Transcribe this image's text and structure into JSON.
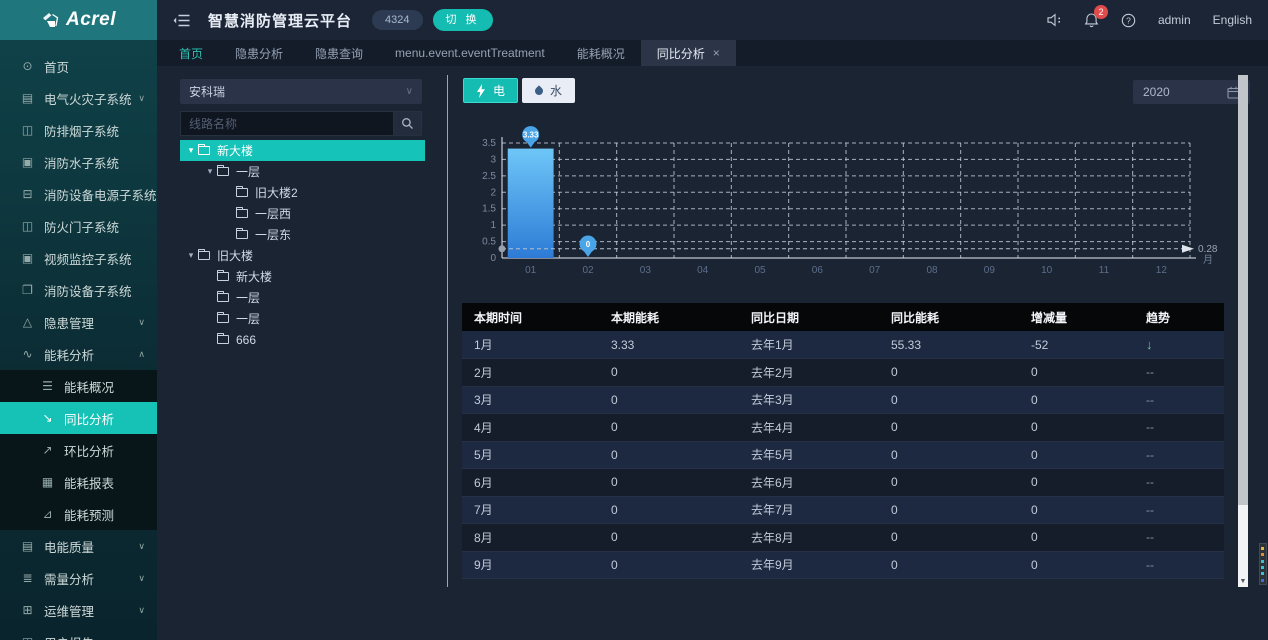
{
  "brand": {
    "logo_text": "Acrel"
  },
  "header": {
    "title": "智慧消防管理云平台",
    "badge": "4324",
    "switch_label": "切 换",
    "bell_count": "2",
    "username": "admin",
    "language": "English"
  },
  "tabs": [
    {
      "label": "首页",
      "accent": true
    },
    {
      "label": "隐患分析"
    },
    {
      "label": "隐患查询"
    },
    {
      "label": "menu.event.eventTreatment"
    },
    {
      "label": "能耗概况"
    },
    {
      "label": "同比分析",
      "active": true,
      "closable": true
    }
  ],
  "sidebar": {
    "items": [
      {
        "label": "首页",
        "icon": "home-icon"
      },
      {
        "label": "电气火灾子系统",
        "icon": "electrical-fire-icon",
        "expand": "down"
      },
      {
        "label": "防排烟子系统",
        "icon": "smoke-control-icon"
      },
      {
        "label": "消防水子系统",
        "icon": "fire-water-icon"
      },
      {
        "label": "消防设备电源子系统",
        "icon": "equipment-power-icon"
      },
      {
        "label": "防火门子系统",
        "icon": "fire-door-icon"
      },
      {
        "label": "视频监控子系统",
        "icon": "video-monitor-icon"
      },
      {
        "label": "消防设备子系统",
        "icon": "fire-equipment-icon"
      },
      {
        "label": "隐患管理",
        "icon": "hazard-management-icon",
        "expand": "down"
      },
      {
        "label": "能耗分析",
        "icon": "energy-analysis-icon",
        "expand": "up",
        "children": [
          {
            "label": "能耗概况",
            "icon": "energy-overview-icon"
          },
          {
            "label": "同比分析",
            "icon": "yoy-analysis-icon",
            "active": true
          },
          {
            "label": "环比分析",
            "icon": "mom-analysis-icon"
          },
          {
            "label": "能耗报表",
            "icon": "energy-report-icon"
          },
          {
            "label": "能耗预测",
            "icon": "energy-forecast-icon"
          }
        ]
      },
      {
        "label": "电能质量",
        "icon": "power-quality-icon",
        "expand": "down"
      },
      {
        "label": "需量分析",
        "icon": "demand-analysis-icon",
        "expand": "down"
      },
      {
        "label": "运维管理",
        "icon": "ops-management-icon",
        "expand": "down"
      },
      {
        "label": "用户报告",
        "icon": "user-report-icon"
      }
    ]
  },
  "tree_panel": {
    "dropdown_value": "安科瑞",
    "search_placeholder": "线路名称",
    "tree": [
      {
        "label": "新大楼",
        "level": 0,
        "caret": true,
        "folder": "open",
        "selected": true
      },
      {
        "label": "一层",
        "level": 1,
        "caret": true,
        "folder": "open"
      },
      {
        "label": "旧大楼2",
        "level": 2,
        "folder": "closed"
      },
      {
        "label": "一层西",
        "level": 2,
        "folder": "closed"
      },
      {
        "label": "一层东",
        "level": 2,
        "folder": "open"
      },
      {
        "label": "旧大楼",
        "level": 0,
        "caret": true,
        "folder": "open"
      },
      {
        "label": "新大楼",
        "level": 1,
        "folder": "open"
      },
      {
        "label": "一层",
        "level": 1,
        "folder": "closed"
      },
      {
        "label": "一层",
        "level": 1,
        "folder": "closed"
      },
      {
        "label": "666",
        "level": 1,
        "folder": "closed"
      }
    ]
  },
  "toolbar": {
    "electric_label": "电",
    "water_label": "水",
    "year": "2020"
  },
  "chart_data": {
    "type": "bar",
    "categories": [
      "01",
      "02",
      "03",
      "04",
      "05",
      "06",
      "07",
      "08",
      "09",
      "10",
      "11",
      "12"
    ],
    "series": [
      {
        "name": "本期能耗",
        "values": [
          3.33,
          0,
          0,
          0,
          0,
          0,
          0,
          0,
          0,
          0,
          0,
          0
        ]
      }
    ],
    "markers": [
      {
        "index": 0,
        "label": "3.33"
      },
      {
        "index": 1,
        "label": "0"
      }
    ],
    "average_line": 0.28,
    "average_label": "0.28",
    "unit": "月",
    "ylim": [
      0,
      3.5
    ],
    "ytick_step": 0.5,
    "grid": "dashed",
    "legend": "none",
    "bar_color_top": "#6ec6f7",
    "bar_color_bottom": "#2d7bd6",
    "pin_color": "#4aa4e8"
  },
  "table": {
    "headers": [
      "本期时间",
      "本期能耗",
      "同比日期",
      "同比能耗",
      "增减量",
      "趋势"
    ],
    "rows": [
      [
        "1月",
        "3.33",
        "去年1月",
        "55.33",
        "-52",
        "down"
      ],
      [
        "2月",
        "0",
        "去年2月",
        "0",
        "0",
        "--"
      ],
      [
        "3月",
        "0",
        "去年3月",
        "0",
        "0",
        "--"
      ],
      [
        "4月",
        "0",
        "去年4月",
        "0",
        "0",
        "--"
      ],
      [
        "5月",
        "0",
        "去年5月",
        "0",
        "0",
        "--"
      ],
      [
        "6月",
        "0",
        "去年6月",
        "0",
        "0",
        "--"
      ],
      [
        "7月",
        "0",
        "去年7月",
        "0",
        "0",
        "--"
      ],
      [
        "8月",
        "0",
        "去年8月",
        "0",
        "0",
        "--"
      ],
      [
        "9月",
        "0",
        "去年9月",
        "0",
        "0",
        "--"
      ]
    ]
  },
  "colors": {
    "accent_teal": "#16c2b6",
    "sidebar_teal": "#1f767c",
    "danger_red": "#e04b4b",
    "trend_down_green": "#6cc3a6",
    "pin_blue": "#4aa4e8"
  },
  "scroll_minimap_colors": [
    "#e3b73c",
    "#df8f2d",
    "#36c2ce",
    "#36c2ce",
    "#36c2ce",
    "#3f6fd8"
  ]
}
